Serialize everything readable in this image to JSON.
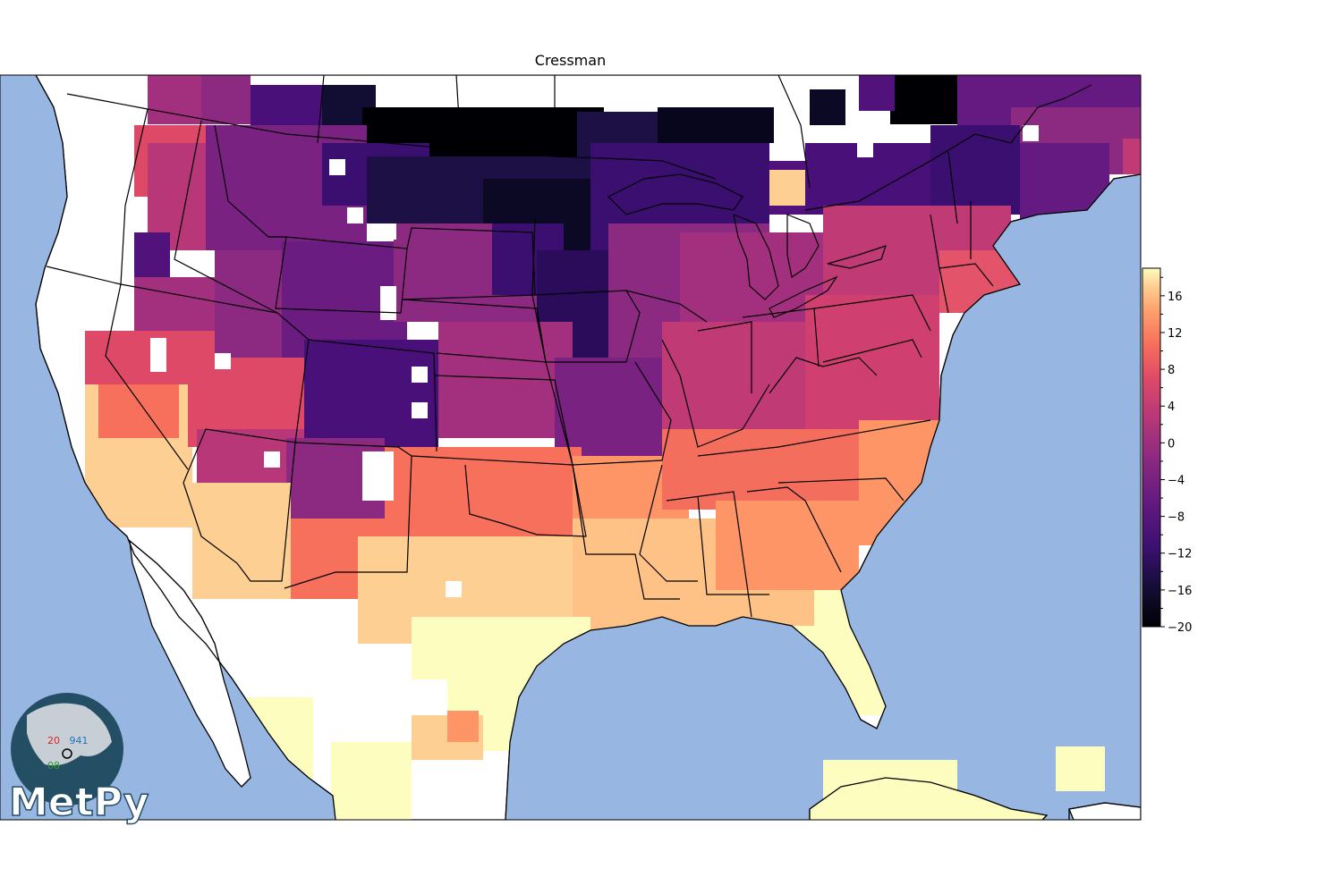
{
  "title": "Cressman",
  "colorbar": {
    "vmin": -20,
    "vmax": 19,
    "tick_labels": [
      "16",
      "12",
      "8",
      "4",
      "0",
      "−4",
      "−8",
      "−12",
      "−16",
      "−20"
    ],
    "tick_values": [
      16,
      12,
      8,
      4,
      0,
      -4,
      -8,
      -12,
      -16,
      -20
    ],
    "colormap": "magma"
  },
  "map": {
    "ocean_color": "#97b6e1",
    "land_color": "#ffffff",
    "border_color": "#000000",
    "projection": "Lambert conformal conic (CONUS)"
  },
  "logo": {
    "text": "MetPy",
    "globe_color": "#234e64",
    "station_temp": "20",
    "station_pressure": "941",
    "station_dewpoint": "08"
  }
}
